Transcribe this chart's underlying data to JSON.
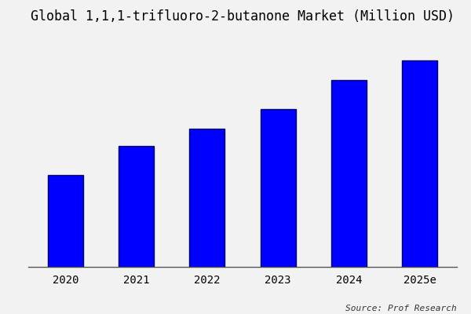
{
  "title": "Global 1,1,1-trifluoro-2-butanone Market (Million USD)",
  "categories": [
    "2020",
    "2021",
    "2022",
    "2023",
    "2024",
    "2025e"
  ],
  "values": [
    32,
    42,
    48,
    55,
    65,
    72
  ],
  "bar_color": "#0000FF",
  "bar_edgecolor": "#000066",
  "background_color": "#f2f2f2",
  "plot_background": "#f2f2f2",
  "title_fontsize": 12,
  "tick_fontsize": 10,
  "source_text": "Source: Prof Research",
  "ylim": [
    0,
    82
  ],
  "bar_width": 0.5
}
